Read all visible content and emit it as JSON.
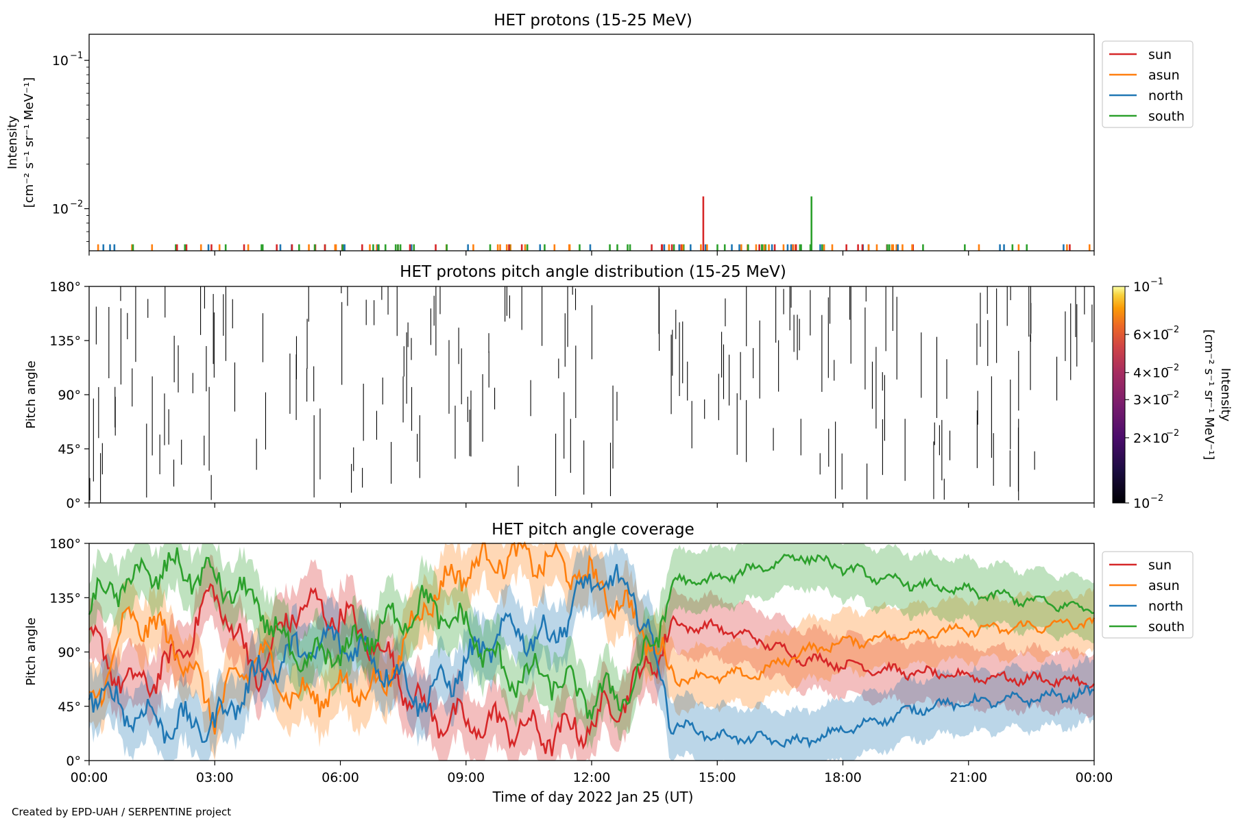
{
  "figure": {
    "footer": "Created by EPD-UAH / SERPENTINE project",
    "xlabel": "Time of day 2022 Jan 25 (UT)",
    "xticks": [
      "00:00",
      "03:00",
      "06:00",
      "09:00",
      "12:00",
      "15:00",
      "18:00",
      "21:00",
      "00:00"
    ]
  },
  "colors": {
    "sun": "#d62728",
    "asun": "#ff7f0e",
    "north": "#1f77b4",
    "south": "#2ca02c"
  },
  "chart_data": [
    {
      "type": "line",
      "title": "HET protons (15-25 MeV)",
      "ylabel_lines": [
        "Intensity",
        "[cm⁻² s⁻¹ sr⁻¹ MeV⁻¹]"
      ],
      "yscale": "log",
      "ylim": [
        0.0052,
        0.15
      ],
      "yticks": [
        {
          "value": 0.1,
          "base": "10",
          "exp": "−1"
        },
        {
          "value": 0.01,
          "base": "10",
          "exp": "−2"
        }
      ],
      "xlim_hours": [
        0,
        24
      ],
      "legend": {
        "position": "top-right",
        "entries": [
          "sun",
          "asun",
          "north",
          "south"
        ]
      },
      "note": "sparse single-count spikes near the lower limit for all sectors",
      "peaks": [
        {
          "series": "sun",
          "time": "14:40",
          "value": 0.0121
        },
        {
          "series": "south",
          "time": "17:15",
          "value": 0.0121
        }
      ]
    },
    {
      "type": "heatmap",
      "title": "HET protons pitch angle distribution (15-25 MeV)",
      "ylabel": "Pitch angle",
      "ylim": [
        0,
        180
      ],
      "yticks": [
        "0°",
        "45°",
        "90°",
        "135°",
        "180°"
      ],
      "colorbar": {
        "label_lines": [
          "Intensity",
          "[cm⁻² s⁻¹ sr⁻¹ MeV⁻¹]"
        ],
        "scale": "log",
        "range": [
          0.01,
          0.1
        ],
        "colormap": "inferno",
        "ticks": [
          {
            "value": 0.1,
            "text": "10",
            "exp": "−1"
          },
          {
            "value": 0.06,
            "text": "6×10",
            "exp": "−2"
          },
          {
            "value": 0.04,
            "text": "4×10",
            "exp": "−2"
          },
          {
            "value": 0.03,
            "text": "3×10",
            "exp": "−2"
          },
          {
            "value": 0.02,
            "text": "2×10",
            "exp": "−2"
          },
          {
            "value": 0.01,
            "text": "10",
            "exp": "−2"
          }
        ]
      },
      "note": "sparse thin black vertical streaks (near-minimum intensity) across the whole day"
    },
    {
      "type": "line",
      "title": "HET pitch angle coverage",
      "ylabel": "Pitch angle",
      "ylim": [
        0,
        180
      ],
      "yticks": [
        "0°",
        "45°",
        "90°",
        "135°",
        "180°"
      ],
      "legend": {
        "position": "top-right",
        "entries": [
          "sun",
          "asun",
          "north",
          "south"
        ]
      },
      "x_hours": [
        0,
        1,
        2,
        3,
        4,
        5,
        6,
        7,
        8,
        9,
        10,
        11,
        12,
        13,
        14,
        15,
        16,
        17,
        18,
        19,
        20,
        21,
        22,
        23,
        24
      ],
      "series": [
        {
          "name": "sun",
          "values": [
            100,
            60,
            80,
            140,
            70,
            130,
            120,
            90,
            40,
            30,
            30,
            20,
            30,
            60,
            112,
            110,
            100,
            85,
            80,
            75,
            72,
            70,
            68,
            67,
            64
          ]
        },
        {
          "name": "asun",
          "values": [
            40,
            120,
            100,
            40,
            90,
            50,
            60,
            60,
            130,
            160,
            170,
            165,
            150,
            120,
            68,
            70,
            72,
            90,
            98,
            102,
            106,
            108,
            110,
            112,
            115
          ]
        },
        {
          "name": "north",
          "values": [
            60,
            40,
            30,
            30,
            70,
            90,
            100,
            80,
            50,
            80,
            110,
            100,
            150,
            140,
            30,
            20,
            18,
            15,
            25,
            35,
            45,
            48,
            50,
            53,
            56
          ]
        },
        {
          "name": "south",
          "values": [
            130,
            150,
            160,
            150,
            130,
            80,
            90,
            110,
            130,
            110,
            70,
            70,
            50,
            60,
            148,
            150,
            160,
            170,
            160,
            150,
            145,
            140,
            135,
            130,
            125
          ]
        }
      ],
      "band_halfwidth": 25
    }
  ]
}
